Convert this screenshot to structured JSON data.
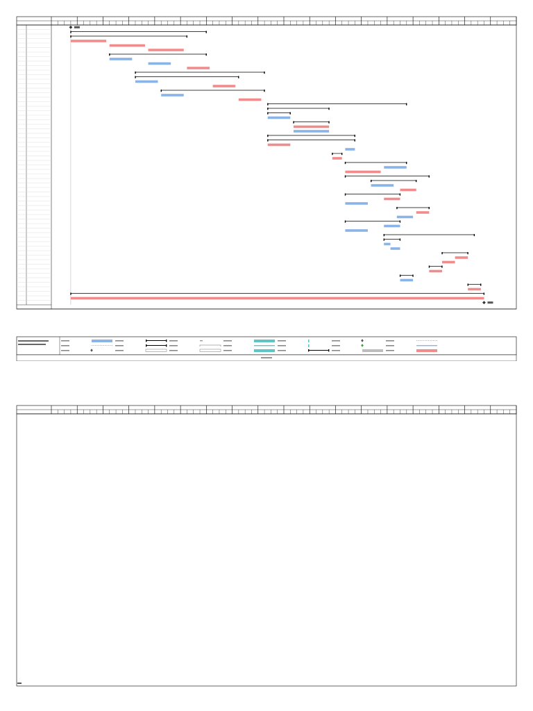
{
  "chart_data": {
    "type": "gantt",
    "time_axis": {
      "unit": "week",
      "first_week": 1,
      "last_week": 72
    },
    "project_start_week": 4,
    "project_end_week": 68,
    "rows": [
      {
        "kind": "milestone",
        "week": 4
      },
      {
        "kind": "summary",
        "start": 4,
        "end": 25
      },
      {
        "kind": "summary",
        "start": 4,
        "end": 22
      },
      {
        "kind": "task",
        "start": 4,
        "end": 9.5
      },
      {
        "kind": "task",
        "start": 10,
        "end": 15.5
      },
      {
        "kind": "task",
        "start": 16,
        "end": 21.5
      },
      {
        "kind": "summary",
        "start": 10,
        "end": 25
      },
      {
        "kind": "baseline",
        "start": 10,
        "end": 13.5
      },
      {
        "kind": "baseline",
        "start": 16,
        "end": 19.5
      },
      {
        "kind": "task",
        "start": 22,
        "end": 25.5
      },
      {
        "kind": "summary",
        "start": 14,
        "end": 34
      },
      {
        "kind": "summary",
        "start": 14,
        "end": 30
      },
      {
        "kind": "baseline",
        "start": 14,
        "end": 17.5
      },
      {
        "kind": "task",
        "start": 26,
        "end": 29.5
      },
      {
        "kind": "summary",
        "start": 18,
        "end": 34
      },
      {
        "kind": "baseline",
        "start": 18,
        "end": 21.5
      },
      {
        "kind": "task",
        "start": 30,
        "end": 33.5
      },
      {
        "kind": "summary",
        "start": 34.5,
        "end": 56
      },
      {
        "kind": "summary",
        "start": 34.5,
        "end": 44
      },
      {
        "kind": "summary",
        "start": 34.5,
        "end": 38
      },
      {
        "kind": "baseline",
        "start": 34.5,
        "end": 38
      },
      {
        "kind": "summary",
        "start": 38.5,
        "end": 44
      },
      {
        "kind": "task",
        "start": 38.5,
        "end": 44
      },
      {
        "kind": "baseline",
        "start": 38.5,
        "end": 44
      },
      {
        "kind": "summary",
        "start": 34.5,
        "end": 48
      },
      {
        "kind": "summary",
        "start": 34.5,
        "end": 48
      },
      {
        "kind": "task",
        "start": 34.5,
        "end": 38
      },
      {
        "kind": "baseline",
        "start": 46.5,
        "end": 48
      },
      {
        "kind": "summary",
        "start": 44.5,
        "end": 46
      },
      {
        "kind": "task",
        "start": 44.5,
        "end": 46
      },
      {
        "kind": "summary",
        "start": 46.5,
        "end": 56
      },
      {
        "kind": "baseline",
        "start": 52.5,
        "end": 56
      },
      {
        "kind": "task",
        "start": 46.5,
        "end": 52
      },
      {
        "kind": "summary",
        "start": 46.5,
        "end": 59.5
      },
      {
        "kind": "summary",
        "start": 50.5,
        "end": 57.5
      },
      {
        "kind": "baseline",
        "start": 50.5,
        "end": 54
      },
      {
        "kind": "task",
        "start": 55,
        "end": 57.5
      },
      {
        "kind": "summary",
        "start": 46.5,
        "end": 55
      },
      {
        "kind": "task",
        "start": 52.5,
        "end": 55
      },
      {
        "kind": "baseline",
        "start": 46.5,
        "end": 50
      },
      {
        "kind": "summary",
        "start": 54.5,
        "end": 59.5
      },
      {
        "kind": "task",
        "start": 57.5,
        "end": 59.5
      },
      {
        "kind": "baseline",
        "start": 54.5,
        "end": 57
      },
      {
        "kind": "summary",
        "start": 46.5,
        "end": 55
      },
      {
        "kind": "baseline",
        "start": 52.5,
        "end": 55
      },
      {
        "kind": "baseline",
        "start": 46.5,
        "end": 50
      },
      {
        "kind": "summary",
        "start": 52.5,
        "end": 66.5
      },
      {
        "kind": "summary",
        "start": 52.5,
        "end": 55
      },
      {
        "kind": "baseline",
        "start": 52.5,
        "end": 53.5
      },
      {
        "kind": "baseline",
        "start": 53.5,
        "end": 55
      },
      {
        "kind": "summary",
        "start": 61.5,
        "end": 65.5
      },
      {
        "kind": "task",
        "start": 63.5,
        "end": 65.5
      },
      {
        "kind": "task",
        "start": 61.5,
        "end": 63.5
      },
      {
        "kind": "summary",
        "start": 59.5,
        "end": 61.5
      },
      {
        "kind": "task",
        "start": 59.5,
        "end": 61.5
      },
      {
        "kind": "summary",
        "start": 55,
        "end": 57
      },
      {
        "kind": "baseline",
        "start": 55,
        "end": 57
      },
      {
        "kind": "summary",
        "start": 65.5,
        "end": 67.5
      },
      {
        "kind": "task",
        "start": 65.5,
        "end": 67.5
      },
      {
        "kind": "summary",
        "start": 4,
        "end": 68
      },
      {
        "kind": "task",
        "start": 4,
        "end": 68
      },
      {
        "kind": "milestone",
        "week": 68
      }
    ],
    "colors": {
      "task": "#f28b8b",
      "baseline": "#8ab4e8",
      "summary": "#000000",
      "milestone": "#333333",
      "critical": "#bdbdbd",
      "teal": "#5ec4c4",
      "grid": "#d6d6d6",
      "border": "#000000"
    },
    "legend_rows": 3,
    "legend_cols": 8
  }
}
